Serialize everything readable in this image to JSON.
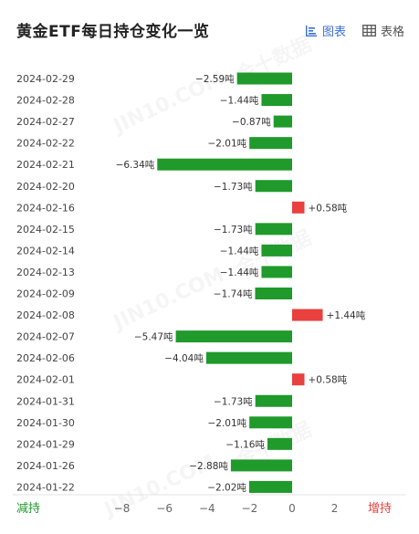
{
  "header": {
    "title": "黄金ETF每日持仓变化一览",
    "tabs": [
      {
        "label": "图表",
        "icon": "chart-icon",
        "active": true
      },
      {
        "label": "表格",
        "icon": "table-icon",
        "active": false
      }
    ]
  },
  "watermark": [
    "金十数据",
    "JIN10.COM"
  ],
  "colors": {
    "positive": "#e8413e",
    "negative": "#1f9a2b",
    "decrease_label": "#1f9a2b",
    "increase_label": "#e8413e",
    "accent": "#3b6fd6"
  },
  "axis_labels": {
    "left": "减持",
    "right": "增持"
  },
  "chart_data": {
    "type": "bar",
    "orientation": "horizontal",
    "unit": "吨",
    "categories": [
      "2024-02-29",
      "2024-02-28",
      "2024-02-27",
      "2024-02-22",
      "2024-02-21",
      "2024-02-20",
      "2024-02-16",
      "2024-02-15",
      "2024-02-14",
      "2024-02-13",
      "2024-02-09",
      "2024-02-08",
      "2024-02-07",
      "2024-02-06",
      "2024-02-01",
      "2024-01-31",
      "2024-01-30",
      "2024-01-29",
      "2024-01-26",
      "2024-01-22"
    ],
    "values": [
      -2.59,
      -1.44,
      -0.87,
      -2.01,
      -6.34,
      -1.73,
      0.58,
      -1.73,
      -1.44,
      -1.44,
      -1.74,
      1.44,
      -5.47,
      -4.04,
      0.58,
      -1.73,
      -2.01,
      -1.16,
      -2.88,
      -2.02
    ],
    "value_labels": [
      "−2.59吨",
      "−1.44吨",
      "−0.87吨",
      "−2.01吨",
      "−6.34吨",
      "−1.73吨",
      "+0.58吨",
      "−1.73吨",
      "−1.44吨",
      "−1.44吨",
      "−1.74吨",
      "+1.44吨",
      "−5.47吨",
      "−4.04吨",
      "+0.58吨",
      "−1.73吨",
      "−2.01吨",
      "−1.16吨",
      "−2.88吨",
      "−2.02吨"
    ],
    "xlim": [
      -8.5,
      5.5
    ],
    "xticks": [
      -8,
      -6,
      -4,
      -2,
      0,
      2
    ],
    "xtick_labels": [
      "−8",
      "−6",
      "−4",
      "−2",
      "0",
      "2"
    ]
  }
}
